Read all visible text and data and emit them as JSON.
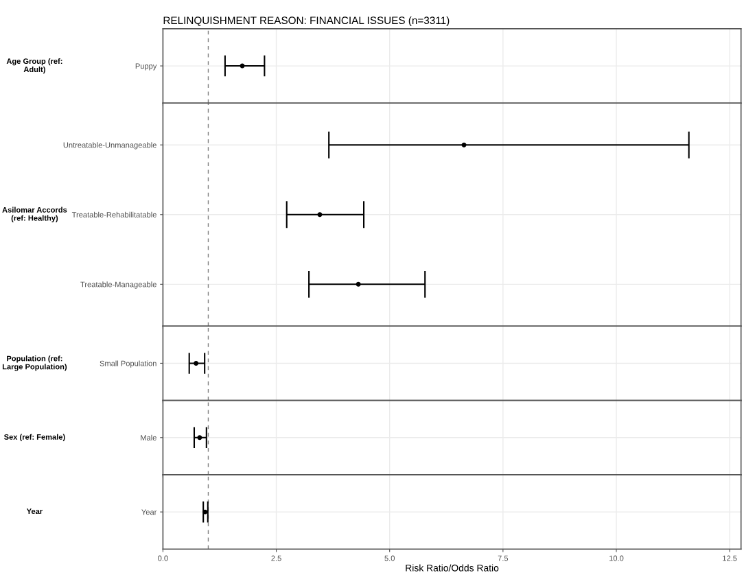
{
  "chart_data": [
    {
      "type": "scatter",
      "title": "RELINQUISHMENT REASON: FINANCIAL ISSUES (n=3311)",
      "ylabel": "Age Group (ref:\nAdult)",
      "orientation": "horizontal",
      "categories": [
        "Puppy"
      ],
      "values": [
        1.75
      ],
      "errors": [
        [
          1.37,
          2.24
        ]
      ],
      "color": "#000000",
      "marker": "circle",
      "xlim": [
        0,
        12.75
      ],
      "xticks": [
        0,
        2.5,
        5,
        7.5,
        10,
        12.5
      ],
      "ref_lines": [
        {
          "axis": "x",
          "value": 1,
          "color": "#808080",
          "line_style": "dashed"
        }
      ],
      "grid": true,
      "tick_labels": "y"
    },
    {
      "type": "scatter",
      "ylabel": "Asilomar Accords\n(ref: Healthy)",
      "orientation": "horizontal",
      "categories": [
        "Untreatable-Unmanageable",
        "Treatable-Rehabilitatable",
        "Treatable-Manageable"
      ],
      "values": [
        6.64,
        3.46,
        4.31
      ],
      "errors": [
        [
          3.66,
          11.6
        ],
        [
          2.73,
          4.43
        ],
        [
          3.22,
          5.78
        ]
      ],
      "color": "#000000",
      "marker": "circle",
      "xlim": [
        0,
        12.75
      ],
      "xticks": [
        0,
        2.5,
        5,
        7.5,
        10,
        12.5
      ],
      "ref_lines": [
        {
          "axis": "x",
          "value": 1,
          "color": "#808080",
          "line_style": "dashed"
        }
      ],
      "grid": true,
      "tick_labels": "y"
    },
    {
      "type": "scatter",
      "ylabel": "Population (ref:\nLarge Population)",
      "orientation": "horizontal",
      "categories": [
        "Small Population"
      ],
      "values": [
        0.73
      ],
      "errors": [
        [
          0.58,
          0.92
        ]
      ],
      "color": "#000000",
      "marker": "circle",
      "xlim": [
        0,
        12.75
      ],
      "xticks": [
        0,
        2.5,
        5,
        7.5,
        10,
        12.5
      ],
      "ref_lines": [
        {
          "axis": "x",
          "value": 1,
          "color": "#808080",
          "line_style": "dashed"
        }
      ],
      "grid": true,
      "tick_labels": "y"
    },
    {
      "type": "scatter",
      "ylabel": "Sex (ref: Female)",
      "orientation": "horizontal",
      "categories": [
        "Male"
      ],
      "values": [
        0.81
      ],
      "errors": [
        [
          0.69,
          0.96
        ]
      ],
      "color": "#000000",
      "marker": "circle",
      "xlim": [
        0,
        12.75
      ],
      "xticks": [
        0,
        2.5,
        5,
        7.5,
        10,
        12.5
      ],
      "ref_lines": [
        {
          "axis": "x",
          "value": 1,
          "color": "#808080",
          "line_style": "dashed"
        }
      ],
      "grid": true,
      "tick_labels": "y"
    },
    {
      "type": "scatter",
      "ylabel": "Year",
      "xlabel": "Risk Ratio/Odds Ratio",
      "orientation": "horizontal",
      "categories": [
        "Year"
      ],
      "values": [
        0.93
      ],
      "errors": [
        [
          0.89,
          0.99
        ]
      ],
      "color": "#000000",
      "marker": "circle",
      "xlim": [
        0,
        12.75
      ],
      "xticks": [
        {
          "value": 0,
          "label": "0.0"
        },
        2.5,
        {
          "value": 5,
          "label": "5.0"
        },
        7.5,
        {
          "value": 10,
          "label": "10.0"
        },
        12.5
      ],
      "ref_lines": [
        {
          "axis": "x",
          "value": 1,
          "color": "#808080",
          "line_style": "dashed"
        }
      ],
      "grid": true
    }
  ]
}
